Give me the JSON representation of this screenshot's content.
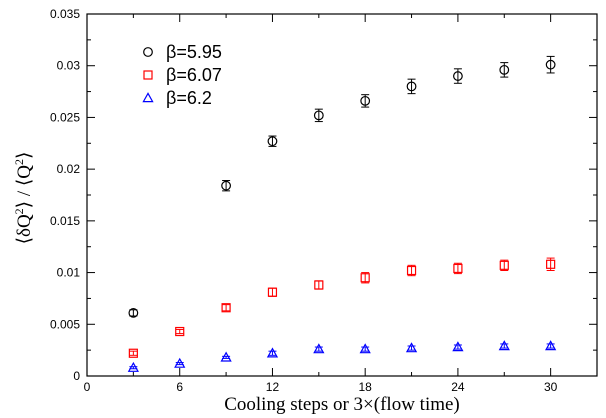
{
  "chart_data": {
    "type": "scatter",
    "xlabel": "Cooling steps or 3×(flow time)",
    "ylabel_parts": {
      "open": "⟨δQ",
      "sup1": "2",
      "mid": "⟩ / ⟨Q",
      "sup2": "2",
      "close": "⟩"
    },
    "xlim": [
      0,
      33
    ],
    "ylim": [
      0,
      0.035
    ],
    "xticks": [
      0,
      6,
      12,
      18,
      24,
      30
    ],
    "yticks": [
      0,
      0.005,
      0.01,
      0.015,
      0.02,
      0.025,
      0.03,
      0.035
    ],
    "xtick_labels": [
      "0",
      "6",
      "12",
      "18",
      "24",
      "30"
    ],
    "ytick_labels": [
      "0",
      "0.005",
      "0.01",
      "0.015",
      "0.02",
      "0.025",
      "0.03",
      "0.035"
    ],
    "grid": false,
    "legend_position": "top-left",
    "series": [
      {
        "name": "β=5.95",
        "marker": "circle",
        "color": "#000000",
        "x": [
          3,
          9,
          12,
          15,
          18,
          21,
          24,
          27,
          30
        ],
        "y": [
          0.0061,
          0.0184,
          0.0227,
          0.0252,
          0.0266,
          0.028,
          0.029,
          0.0296,
          0.0301
        ],
        "err": [
          0.0003,
          0.0005,
          0.0005,
          0.0006,
          0.0006,
          0.0007,
          0.0007,
          0.0007,
          0.0008
        ]
      },
      {
        "name": "β=6.07",
        "marker": "square",
        "color": "#ff0000",
        "x": [
          3,
          6,
          9,
          12,
          15,
          18,
          21,
          24,
          27,
          30
        ],
        "y": [
          0.0022,
          0.0043,
          0.0066,
          0.0081,
          0.0088,
          0.0095,
          0.0102,
          0.0104,
          0.0107,
          0.0108
        ],
        "err": [
          0.0002,
          0.0002,
          0.0003,
          0.0004,
          0.0004,
          0.0005,
          0.0005,
          0.0005,
          0.0005,
          0.0006
        ]
      },
      {
        "name": "β=6.2",
        "marker": "triangle",
        "color": "#0000ff",
        "x": [
          3,
          6,
          9,
          12,
          15,
          18,
          21,
          24,
          27,
          30
        ],
        "y": [
          0.0008,
          0.0012,
          0.0018,
          0.0022,
          0.0026,
          0.0026,
          0.0027,
          0.0028,
          0.0029,
          0.0029
        ],
        "err": [
          0.0001,
          0.0001,
          0.0001,
          0.0002,
          0.0002,
          0.0002,
          0.0002,
          0.0002,
          0.0002,
          0.0002
        ]
      }
    ]
  }
}
